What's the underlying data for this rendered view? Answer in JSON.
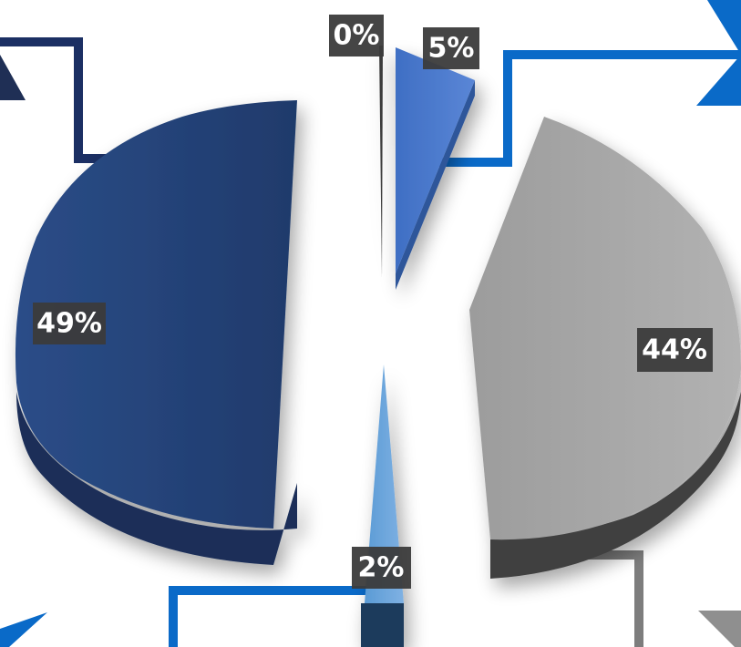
{
  "chart_data": {
    "type": "pie",
    "style": "3d-exploded",
    "slices": [
      {
        "key": "s0",
        "label": "0%",
        "value": 0.4,
        "color": "#3a3a3a"
      },
      {
        "key": "s1",
        "label": "5%",
        "value": 5,
        "color": "#4472c4"
      },
      {
        "key": "s2",
        "label": "44%",
        "value": 44,
        "color": "#a5a5a5"
      },
      {
        "key": "s3",
        "label": "2%",
        "value": 2,
        "color": "#5b9bd5"
      },
      {
        "key": "s4",
        "label": "49%",
        "value": 49,
        "color": "#264478"
      }
    ],
    "legend": "none",
    "grid": false
  }
}
